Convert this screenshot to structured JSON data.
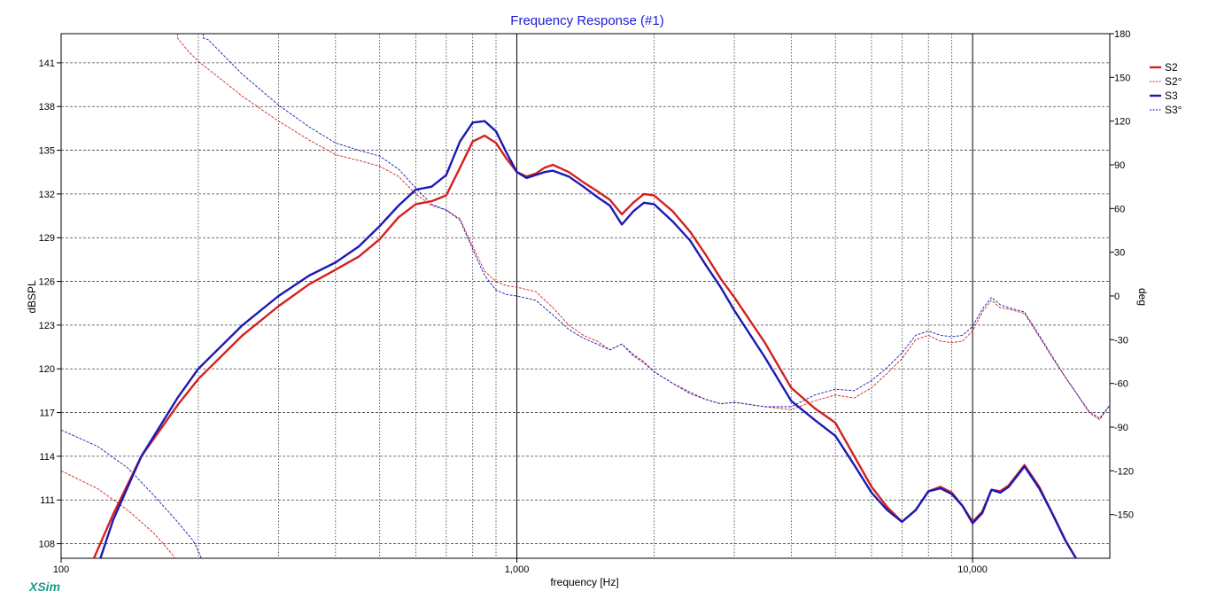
{
  "brand": "XSim",
  "chart_data": {
    "type": "line",
    "title": "Frequency Response (#1)",
    "xlabel": "frequency [Hz]",
    "ylabel": "dBSPL",
    "y2label": "deg",
    "xscale": "log",
    "xlim": [
      100,
      20000
    ],
    "ylim": [
      107,
      143
    ],
    "y2lim": [
      -180,
      180
    ],
    "x_ticks": [
      {
        "value": 100,
        "label": "100"
      },
      {
        "value": 1000,
        "label": "1,000"
      },
      {
        "value": 10000,
        "label": "10,000"
      }
    ],
    "y_ticks": [
      108,
      111,
      114,
      117,
      120,
      123,
      126,
      129,
      132,
      135,
      138,
      141
    ],
    "y2_ticks": [
      180,
      150,
      120,
      90,
      60,
      30,
      0,
      -30,
      -60,
      -90,
      -120,
      -150
    ],
    "grid": true,
    "legend_position": "right",
    "series": [
      {
        "name": "S2",
        "axis": "left",
        "style": "solid",
        "color": "#d42020",
        "x": [
          118,
          130,
          150,
          180,
          200,
          250,
          300,
          350,
          400,
          450,
          500,
          550,
          600,
          650,
          700,
          750,
          800,
          850,
          900,
          950,
          1000,
          1050,
          1100,
          1150,
          1200,
          1300,
          1400,
          1500,
          1600,
          1700,
          1800,
          1900,
          2000,
          2200,
          2400,
          2600,
          2800,
          3000,
          3500,
          4000,
          4500,
          5000,
          5500,
          6000,
          6500,
          7000,
          7500,
          8000,
          8500,
          9000,
          9500,
          10000,
          10500,
          11000,
          11500,
          12000,
          13000,
          14000,
          15000,
          16000,
          17000
        ],
        "y": [
          107.0,
          110.0,
          114.0,
          117.5,
          119.3,
          122.3,
          124.3,
          125.8,
          126.8,
          127.7,
          128.9,
          130.4,
          131.3,
          131.5,
          131.9,
          133.8,
          135.6,
          136.0,
          135.5,
          134.4,
          133.5,
          133.2,
          133.4,
          133.8,
          134.0,
          133.5,
          132.8,
          132.2,
          131.6,
          130.6,
          131.4,
          132.0,
          131.9,
          130.8,
          129.4,
          127.8,
          126.2,
          124.9,
          121.8,
          118.7,
          117.3,
          116.3,
          114.0,
          111.9,
          110.5,
          109.5,
          110.3,
          111.6,
          111.9,
          111.5,
          110.6,
          109.5,
          110.2,
          111.7,
          111.6,
          112.0,
          113.4,
          111.9,
          110.0,
          108.2,
          106.8
        ]
      },
      {
        "name": "S2°",
        "axis": "right",
        "style": "dashed",
        "color": "#d42020",
        "x": [
          100,
          120,
          140,
          160,
          175,
          180,
          190,
          200,
          250,
          300,
          350,
          400,
          450,
          500,
          550,
          600,
          650,
          700,
          750,
          800,
          850,
          900,
          950,
          1000,
          1100,
          1200,
          1300,
          1400,
          1500,
          1600,
          1700,
          1800,
          1900,
          2000,
          2200,
          2400,
          2600,
          2800,
          3000,
          3500,
          4000,
          4500,
          5000,
          5500,
          6000,
          6500,
          7000,
          7500,
          8000,
          8500,
          9000,
          9500,
          10000,
          10500,
          11000,
          11500,
          12000,
          13000,
          14000,
          15000,
          16000,
          17000,
          18000,
          19000,
          20000
        ],
        "y": [
          -120,
          -132,
          -147,
          -163,
          -177,
          177,
          168,
          161,
          137,
          120,
          107,
          97,
          93,
          89,
          82,
          70,
          62,
          59,
          53,
          34,
          17,
          10,
          7,
          6,
          3,
          -8,
          -20,
          -27,
          -31,
          -37,
          -33,
          -40,
          -45,
          -52,
          -60,
          -66,
          -71,
          -74,
          -73,
          -76,
          -78,
          -72,
          -68,
          -70,
          -63,
          -53,
          -43,
          -30,
          -27,
          -31,
          -32,
          -31,
          -24,
          -11,
          -3,
          -8,
          -9,
          -12,
          -28,
          -43,
          -56,
          -68,
          -80,
          -85,
          -75
        ]
      },
      {
        "name": "S3",
        "axis": "left",
        "style": "solid",
        "color": "#1a1ab4",
        "x": [
          122,
          130,
          150,
          180,
          200,
          250,
          300,
          350,
          400,
          450,
          500,
          550,
          600,
          650,
          700,
          750,
          800,
          850,
          900,
          950,
          1000,
          1050,
          1100,
          1150,
          1200,
          1300,
          1400,
          1500,
          1600,
          1700,
          1800,
          1900,
          2000,
          2200,
          2400,
          2600,
          2800,
          3000,
          3500,
          4000,
          4500,
          5000,
          5500,
          6000,
          6500,
          7000,
          7500,
          8000,
          8500,
          9000,
          9500,
          10000,
          10500,
          11000,
          11500,
          12000,
          13000,
          14000,
          15000,
          16000,
          17000
        ],
        "y": [
          107.0,
          109.6,
          114.0,
          118.0,
          120.0,
          123.0,
          125.0,
          126.4,
          127.3,
          128.4,
          129.8,
          131.2,
          132.3,
          132.5,
          133.3,
          135.6,
          136.9,
          137.0,
          136.3,
          134.8,
          133.5,
          133.1,
          133.3,
          133.5,
          133.6,
          133.2,
          132.5,
          131.8,
          131.2,
          129.9,
          130.8,
          131.4,
          131.3,
          130.1,
          128.8,
          127.1,
          125.6,
          124.0,
          120.8,
          117.8,
          116.5,
          115.4,
          113.4,
          111.5,
          110.3,
          109.5,
          110.3,
          111.6,
          111.8,
          111.4,
          110.6,
          109.4,
          110.1,
          111.7,
          111.5,
          111.9,
          113.3,
          111.8,
          110.0,
          108.2,
          106.8
        ]
      },
      {
        "name": "S3°",
        "axis": "right",
        "style": "dashed",
        "color": "#1a1ab4",
        "x": [
          100,
          120,
          140,
          160,
          180,
          195,
          200,
          205,
          210,
          250,
          300,
          350,
          400,
          450,
          500,
          550,
          600,
          650,
          700,
          750,
          800,
          850,
          900,
          950,
          1000,
          1100,
          1200,
          1300,
          1400,
          1500,
          1600,
          1700,
          1800,
          1900,
          2000,
          2200,
          2400,
          2600,
          2800,
          3000,
          3500,
          4000,
          4500,
          5000,
          5500,
          6000,
          6500,
          7000,
          7500,
          8000,
          8500,
          9000,
          9500,
          10000,
          10500,
          11000,
          11500,
          12000,
          13000,
          14000,
          15000,
          16000,
          17000,
          18000,
          19000,
          20000
        ],
        "y": [
          -92,
          -103,
          -118,
          -137,
          -155,
          -168,
          -175,
          177,
          176,
          152,
          131,
          116,
          105,
          100,
          96,
          87,
          74,
          63,
          59,
          52,
          32,
          14,
          4,
          1,
          0,
          -3,
          -13,
          -23,
          -29,
          -33,
          -37,
          -33,
          -41,
          -46,
          -52,
          -60,
          -67,
          -71,
          -74,
          -73,
          -76,
          -76,
          -68,
          -64,
          -65,
          -58,
          -49,
          -39,
          -27,
          -24,
          -27,
          -28,
          -27,
          -21,
          -9,
          -1,
          -6,
          -8,
          -11,
          -27,
          -42,
          -56,
          -68,
          -79,
          -84,
          -75
        ]
      }
    ]
  }
}
